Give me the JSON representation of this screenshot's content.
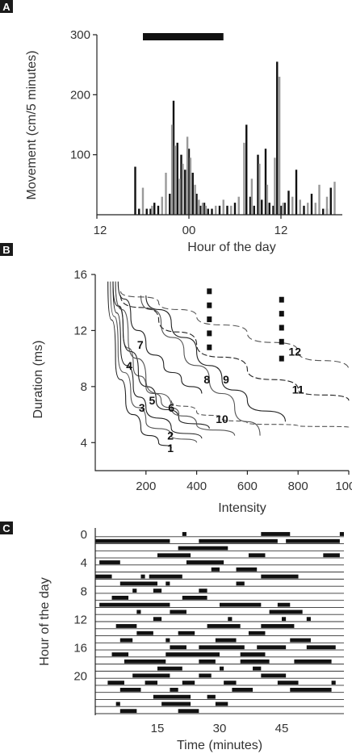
{
  "panels": {
    "a": {
      "letter": "A"
    },
    "b": {
      "letter": "B"
    },
    "c": {
      "letter": "C"
    }
  },
  "chart_data": [
    {
      "id": "A",
      "type": "bar",
      "xlabel": "Hour of the day",
      "ylabel": "Movement (cm/5 minutes)",
      "ylim": [
        0,
        300
      ],
      "y_ticks": [
        100,
        200,
        300
      ],
      "x_ticks": [
        "12",
        "00",
        "12"
      ],
      "x_tick_hours": [
        0,
        12,
        24
      ],
      "xlim_hours": [
        0,
        32
      ],
      "dark_period": [
        6,
        16.5
      ],
      "series": [
        {
          "color": "#111111",
          "x": [
            5.0,
            5.5,
            6.5,
            7.0,
            7.5,
            8.0,
            9.5,
            10.0,
            10.5,
            11.0,
            11.5,
            12.0,
            12.5,
            13.0,
            13.5,
            14.0,
            14.5,
            15.0,
            16.0,
            17.0,
            18.0,
            19.5,
            20.0,
            20.5,
            21.0,
            21.5,
            22.0,
            22.5,
            23.0,
            23.5,
            24.0,
            24.5,
            25.0,
            26.0,
            27.0,
            28.0,
            29.5,
            30.0,
            30.5
          ],
          "values": [
            80,
            10,
            10,
            10,
            20,
            15,
            35,
            190,
            120,
            100,
            75,
            110,
            70,
            35,
            15,
            20,
            10,
            10,
            15,
            15,
            20,
            150,
            30,
            15,
            100,
            25,
            110,
            20,
            15,
            255,
            15,
            20,
            40,
            75,
            15,
            35,
            10,
            10,
            45
          ]
        },
        {
          "color": "#9a9a9a",
          "x": [
            6.0,
            7.2,
            8.5,
            9.0,
            9.8,
            10.2,
            10.8,
            11.2,
            11.8,
            12.2,
            12.8,
            13.3,
            13.8,
            14.2,
            15.5,
            16.5,
            17.5,
            18.5,
            19.2,
            20.2,
            21.2,
            22.2,
            23.2,
            23.8,
            24.3,
            25.5,
            26.5,
            27.5,
            28.5,
            29.0,
            30.0,
            31.0
          ],
          "values": [
            45,
            15,
            30,
            70,
            150,
            115,
            60,
            85,
            130,
            95,
            50,
            25,
            20,
            15,
            15,
            25,
            15,
            30,
            120,
            60,
            85,
            50,
            95,
            230,
            20,
            30,
            25,
            20,
            20,
            50,
            30,
            55
          ]
        }
      ]
    },
    {
      "id": "B",
      "type": "line",
      "xlabel": "Intensity",
      "ylabel": "Duration (ms)",
      "xlim": [
        0,
        1000
      ],
      "ylim": [
        2,
        16
      ],
      "x_ticks": [
        200,
        400,
        600,
        800,
        1000
      ],
      "y_ticks": [
        4,
        8,
        12,
        16
      ],
      "series": [
        {
          "name": "1",
          "x": [
            50,
            80,
            120,
            180,
            250,
            300
          ],
          "y": [
            15.5,
            10,
            7,
            5,
            4,
            3.6
          ]
        },
        {
          "name": "2",
          "x": [
            60,
            90,
            140,
            200,
            300,
            400
          ],
          "y": [
            15.5,
            10.5,
            7.5,
            5.5,
            4.5,
            4
          ]
        },
        {
          "name": "3",
          "x": [
            70,
            100,
            150,
            200,
            300,
            420
          ],
          "y": [
            15.5,
            11,
            8,
            6.5,
            5,
            4.3
          ]
        },
        {
          "name": "4",
          "x": [
            80,
            110,
            150,
            200,
            260,
            330
          ],
          "y": [
            15.5,
            12,
            9.5,
            8,
            7,
            6
          ]
        },
        {
          "name": "5",
          "x": [
            70,
            110,
            170,
            240,
            330,
            450
          ],
          "y": [
            15.5,
            12,
            9,
            7,
            5.7,
            5
          ]
        },
        {
          "name": "6",
          "x": [
            80,
            130,
            200,
            300,
            400,
            550
          ],
          "y": [
            15.5,
            11.5,
            8.5,
            6.5,
            5.3,
            4.5
          ]
        },
        {
          "name": "7",
          "x": [
            90,
            140,
            200,
            270,
            340,
            420
          ],
          "y": [
            15.5,
            13,
            11,
            9.5,
            8.5,
            7.5
          ]
        },
        {
          "name": "8",
          "x": [
            180,
            260,
            350,
            450,
            550,
            650
          ],
          "y": [
            14.5,
            12.5,
            10.5,
            8.5,
            6.5,
            4.5
          ]
        },
        {
          "name": "9",
          "x": [
            200,
            300,
            400,
            500,
            600,
            750
          ],
          "y": [
            14.5,
            12.5,
            10.5,
            8.5,
            7,
            5.5
          ]
        },
        {
          "name": "10",
          "x": [
            300,
            400,
            500,
            600,
            800,
            1000
          ],
          "y": [
            7,
            6.2,
            5.7,
            5.4,
            5.2,
            5.1
          ]
        },
        {
          "name": "11",
          "x": [
            100,
            250,
            400,
            600,
            800,
            1000
          ],
          "y": [
            14.5,
            12.8,
            11,
            9.2,
            7.8,
            7
          ]
        },
        {
          "name": "12",
          "x": [
            100,
            250,
            400,
            600,
            800,
            1000
          ],
          "y": [
            14.8,
            14,
            13,
            11.8,
            10.5,
            9.2
          ]
        }
      ],
      "markers": [
        {
          "x": 450,
          "y": [
            14.8,
            13.8,
            12.8,
            11.8,
            10.8
          ]
        },
        {
          "x": 735,
          "y": [
            14.2,
            13.2,
            12.2,
            11.2,
            10
          ]
        }
      ]
    },
    {
      "id": "C",
      "type": "table",
      "xlabel": "Time (minutes)",
      "ylabel": "Hour of the day",
      "xlim": [
        0,
        60
      ],
      "x_ticks": [
        15,
        30,
        45
      ],
      "y_ticks": [
        0,
        4,
        8,
        12,
        16,
        20
      ],
      "rows": [
        [
          [
            21,
            22
          ],
          [
            40,
            47
          ],
          [
            59,
            60
          ]
        ],
        [
          [
            0,
            18
          ],
          [
            25,
            44
          ],
          [
            46,
            59
          ]
        ],
        [
          [
            20,
            32
          ]
        ],
        [
          [
            15,
            23
          ],
          [
            37,
            41
          ],
          [
            55,
            59
          ]
        ],
        [
          [
            1,
            6
          ],
          [
            22,
            31
          ]
        ],
        [
          [
            28,
            30
          ],
          [
            34,
            39
          ]
        ],
        [
          [
            0,
            4
          ],
          [
            11,
            12
          ],
          [
            13,
            21
          ],
          [
            40,
            49
          ]
        ],
        [
          [
            6,
            15
          ],
          [
            17,
            18
          ],
          [
            34,
            36
          ]
        ],
        [
          [
            9,
            10
          ],
          [
            14,
            16
          ],
          [
            25,
            27
          ]
        ],
        [
          [
            4,
            8
          ],
          [
            21,
            27
          ]
        ],
        [
          [
            1,
            18
          ],
          [
            30,
            40
          ],
          [
            44,
            47
          ]
        ],
        [
          [
            10,
            11
          ],
          [
            18,
            22
          ],
          [
            42,
            50
          ]
        ],
        [
          [
            14,
            16
          ],
          [
            32,
            33
          ],
          [
            45,
            46
          ],
          [
            51,
            52
          ]
        ],
        [
          [
            5,
            10
          ],
          [
            27,
            35
          ],
          [
            40,
            48
          ]
        ],
        [
          [
            10,
            14
          ],
          [
            20,
            24
          ],
          [
            37,
            41
          ]
        ],
        [
          [
            6,
            9
          ],
          [
            17,
            18
          ],
          [
            29,
            34
          ],
          [
            47,
            52
          ]
        ],
        [
          [
            18,
            22
          ],
          [
            25,
            36
          ],
          [
            39,
            46
          ],
          [
            51,
            58
          ]
        ],
        [
          [
            4,
            8
          ],
          [
            17,
            30
          ],
          [
            35,
            41
          ]
        ],
        [
          [
            7,
            17
          ],
          [
            25,
            29
          ],
          [
            35,
            42
          ],
          [
            48,
            57
          ]
        ],
        [
          [
            15,
            21
          ],
          [
            30,
            31
          ],
          [
            38,
            40
          ]
        ],
        [
          [
            9,
            18
          ],
          [
            25,
            28
          ],
          [
            40,
            46
          ]
        ],
        [
          [
            3,
            7
          ],
          [
            12,
            15
          ],
          [
            21,
            24
          ],
          [
            31,
            34
          ],
          [
            44,
            49
          ],
          [
            57,
            58
          ]
        ],
        [
          [
            6,
            11
          ],
          [
            18,
            20
          ],
          [
            33,
            38
          ],
          [
            47,
            57
          ]
        ],
        [
          [
            14,
            23
          ],
          [
            27,
            29
          ]
        ],
        [
          [
            5,
            6
          ],
          [
            16,
            23
          ],
          [
            29,
            32
          ]
        ],
        [
          [
            6,
            10
          ],
          [
            20,
            25
          ]
        ]
      ]
    }
  ]
}
